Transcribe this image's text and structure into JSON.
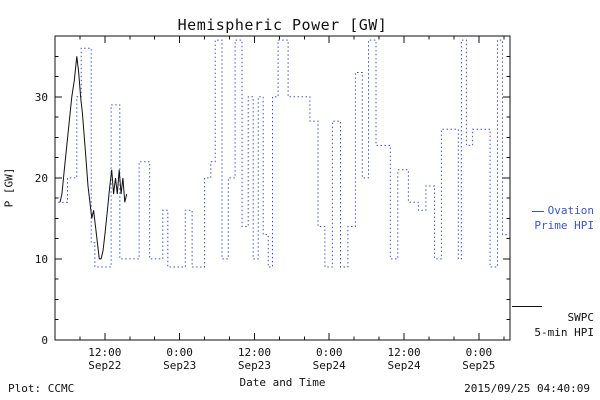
{
  "footer": {
    "left": "Plot: CCMC",
    "right": "2015/09/25 04:40:09"
  },
  "legend": {
    "ovation": {
      "line1": "Ovation",
      "line2": "Prime HPI",
      "color": "#3b56cc"
    },
    "swpc": {
      "line1": "SWPC",
      "line2": "5-min HPI",
      "color": "#111111"
    }
  },
  "chart_data": {
    "type": "line",
    "title": "Hemispheric Power [GW]",
    "xlabel": "Date and Time",
    "ylabel": "P [GW]",
    "ylim": [
      0,
      37.5
    ],
    "yticks": [
      0,
      10,
      20,
      30
    ],
    "x_range": [
      0,
      73
    ],
    "x_unit": "hours from axis start",
    "xticks": [
      {
        "hour": 8,
        "time": "12:00",
        "date": "Sep22"
      },
      {
        "hour": 20,
        "time": "0:00",
        "date": "Sep23"
      },
      {
        "hour": 32,
        "time": "12:00",
        "date": "Sep23"
      },
      {
        "hour": 44,
        "time": "0:00",
        "date": "Sep24"
      },
      {
        "hour": 56,
        "time": "12:00",
        "date": "Sep24"
      },
      {
        "hour": 68,
        "time": "0:00",
        "date": "Sep25"
      }
    ],
    "series": [
      {
        "id": "ovation-prime-hpi",
        "name": "Ovation Prime HPI",
        "color": "#3b56cc",
        "style": "step-dotted",
        "points": [
          [
            0.5,
            17
          ],
          [
            2,
            20
          ],
          [
            3.5,
            30
          ],
          [
            4.2,
            36
          ],
          [
            5.8,
            12
          ],
          [
            6.4,
            9
          ],
          [
            9,
            29
          ],
          [
            10.4,
            10
          ],
          [
            13.5,
            22
          ],
          [
            15.2,
            10
          ],
          [
            17.3,
            16
          ],
          [
            18.1,
            9
          ],
          [
            20.9,
            16
          ],
          [
            22,
            9
          ],
          [
            24,
            20
          ],
          [
            25,
            22
          ],
          [
            25.7,
            37
          ],
          [
            26.8,
            10
          ],
          [
            27.8,
            20
          ],
          [
            28.9,
            37
          ],
          [
            30,
            14
          ],
          [
            31,
            30
          ],
          [
            31.8,
            10
          ],
          [
            32.6,
            30
          ],
          [
            33.4,
            13
          ],
          [
            34.2,
            9
          ],
          [
            34.9,
            30
          ],
          [
            35.8,
            37
          ],
          [
            37.4,
            30
          ],
          [
            40.9,
            27
          ],
          [
            42.2,
            14
          ],
          [
            43.3,
            9
          ],
          [
            44.5,
            27
          ],
          [
            45.8,
            9
          ],
          [
            47,
            14
          ],
          [
            48.2,
            33
          ],
          [
            49.3,
            20
          ],
          [
            50.3,
            37
          ],
          [
            51.5,
            24
          ],
          [
            53.8,
            10
          ],
          [
            55,
            21
          ],
          [
            56.7,
            17
          ],
          [
            58.3,
            16
          ],
          [
            59.5,
            19
          ],
          [
            60.9,
            10
          ],
          [
            62,
            26
          ],
          [
            64.7,
            10
          ],
          [
            65.2,
            37
          ],
          [
            66,
            24
          ],
          [
            67,
            26
          ],
          [
            69.8,
            9
          ],
          [
            71,
            37
          ],
          [
            71.8,
            13
          ],
          [
            73,
            13
          ]
        ]
      },
      {
        "id": "swpc-5min-hpi",
        "name": "SWPC 5-min HPI",
        "color": "#111111",
        "style": "solid",
        "points": [
          [
            0.8,
            17
          ],
          [
            1.1,
            18
          ],
          [
            1.5,
            21
          ],
          [
            1.9,
            24
          ],
          [
            2.3,
            27
          ],
          [
            2.7,
            30
          ],
          [
            3.1,
            32
          ],
          [
            3.5,
            35
          ],
          [
            3.8,
            33
          ],
          [
            4.1,
            30
          ],
          [
            4.4,
            28
          ],
          [
            4.7,
            25
          ],
          [
            5.0,
            22
          ],
          [
            5.3,
            19
          ],
          [
            5.6,
            17
          ],
          [
            5.9,
            15
          ],
          [
            6.2,
            16
          ],
          [
            6.5,
            14
          ],
          [
            6.8,
            12
          ],
          [
            7.1,
            10
          ],
          [
            7.4,
            10
          ],
          [
            7.7,
            11
          ],
          [
            8.0,
            13
          ],
          [
            8.4,
            16
          ],
          [
            8.8,
            19
          ],
          [
            9.1,
            21
          ],
          [
            9.4,
            18
          ],
          [
            9.7,
            20
          ],
          [
            10.0,
            18
          ],
          [
            10.3,
            21
          ],
          [
            10.6,
            18
          ],
          [
            10.9,
            20
          ],
          [
            11.2,
            17
          ],
          [
            11.5,
            18
          ]
        ]
      }
    ]
  }
}
